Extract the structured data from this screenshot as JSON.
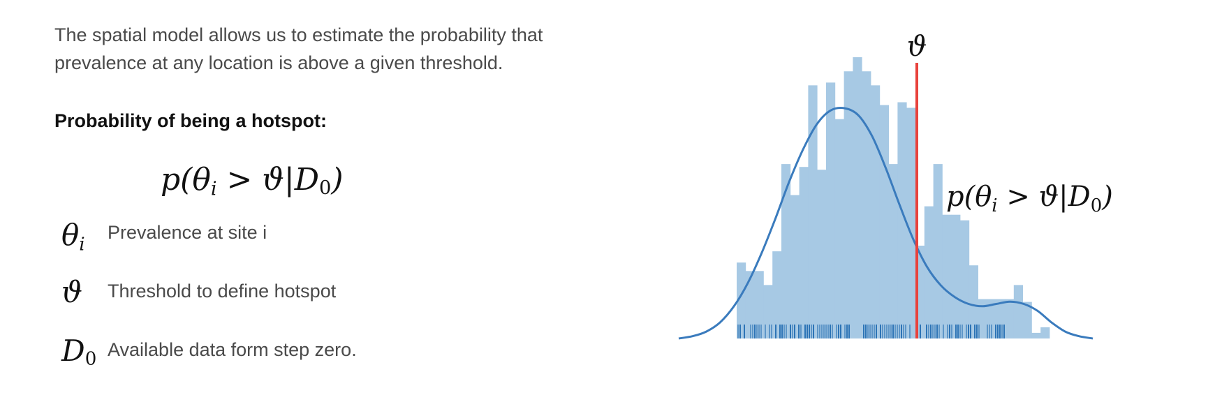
{
  "intro": {
    "line1": "The spatial model allows us to estimate the probability that",
    "line2": "prevalence at any location is above a given threshold."
  },
  "heading": "Probability of being a hotspot:",
  "legend": [
    {
      "symbol": "θ",
      "subscript": "i",
      "description": "Prevalence at site i"
    },
    {
      "symbol": "ϑ",
      "subscript": "",
      "description": "Threshold to define hotspot"
    },
    {
      "symbol": "D",
      "subscript": "0",
      "description": "Available data form step zero."
    }
  ],
  "chart_data": {
    "type": "bar",
    "title": "",
    "xlabel": "",
    "ylabel": "",
    "threshold_label": "ϑ",
    "tail_label": "p(θi > ϑ|D0)",
    "values": [
      0.27,
      0.24,
      0.24,
      0.19,
      0.31,
      0.62,
      0.51,
      0.61,
      0.9,
      0.6,
      0.91,
      0.78,
      0.95,
      1.0,
      0.95,
      0.9,
      0.83,
      0.62,
      0.84,
      0.82,
      0.33,
      0.47,
      0.62,
      0.44,
      0.44,
      0.42,
      0.26,
      0.14,
      0.14,
      0.14,
      0.14,
      0.19,
      0.13,
      0.02,
      0.04
    ],
    "density": [
      0.0,
      0.01,
      0.03,
      0.07,
      0.14,
      0.24,
      0.37,
      0.52,
      0.68,
      0.82,
      0.93,
      0.99,
      1.0,
      0.97,
      0.88,
      0.74,
      0.58,
      0.43,
      0.31,
      0.23,
      0.18,
      0.15,
      0.14,
      0.15,
      0.16,
      0.15,
      0.12,
      0.07,
      0.03,
      0.01,
      0.0
    ],
    "colors": {
      "bars": "#a7c9e4",
      "curve": "#3a7bbd",
      "rug": "#2d74b6",
      "threshold": "#e8423c"
    }
  }
}
